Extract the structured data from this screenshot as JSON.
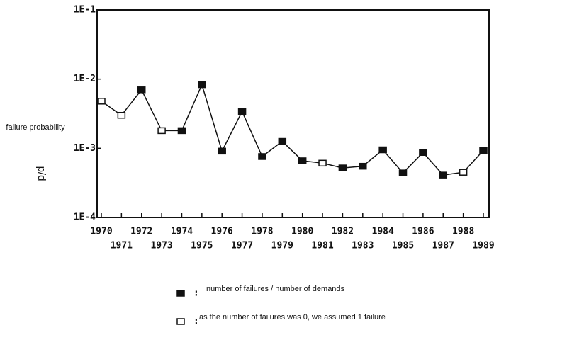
{
  "chart_data": {
    "type": "line",
    "y_label": "failure probability",
    "y_label_unit": "p/d",
    "categories": [
      "1970",
      "1971",
      "1972",
      "1973",
      "1974",
      "1975",
      "1976",
      "1977",
      "1978",
      "1979",
      "1980",
      "1981",
      "1982",
      "1983",
      "1984",
      "1985",
      "1986",
      "1987",
      "1988",
      "1989"
    ],
    "values": [
      0.0048,
      0.003,
      0.007,
      0.0018,
      0.0018,
      0.0083,
      0.00091,
      0.0034,
      0.00076,
      0.00126,
      0.00066,
      0.00061,
      0.00052,
      0.00055,
      0.00095,
      0.00044,
      0.00087,
      0.00041,
      0.00045,
      0.00093
    ],
    "markers": [
      "open",
      "open",
      "filled",
      "open",
      "filled",
      "filled",
      "filled",
      "filled",
      "filled",
      "filled",
      "filled",
      "open",
      "filled",
      "filled",
      "filled",
      "filled",
      "filled",
      "filled",
      "open",
      "filled"
    ],
    "color": "#111111",
    "log_scale": true,
    "ylim": [
      0.0001,
      0.1
    ],
    "yticks": [
      {
        "value": 0.1,
        "label": "1E-1"
      },
      {
        "value": 0.01,
        "label": "1E-2"
      },
      {
        "value": 0.001,
        "label": "1E-3"
      },
      {
        "value": 0.0001,
        "label": "1E-4"
      }
    ],
    "legend": [
      {
        "marker": "filled",
        "label": "number of failures / number of demands"
      },
      {
        "marker": "open",
        "label": "as the number of failures was 0, we assumed 1 failure"
      }
    ]
  }
}
